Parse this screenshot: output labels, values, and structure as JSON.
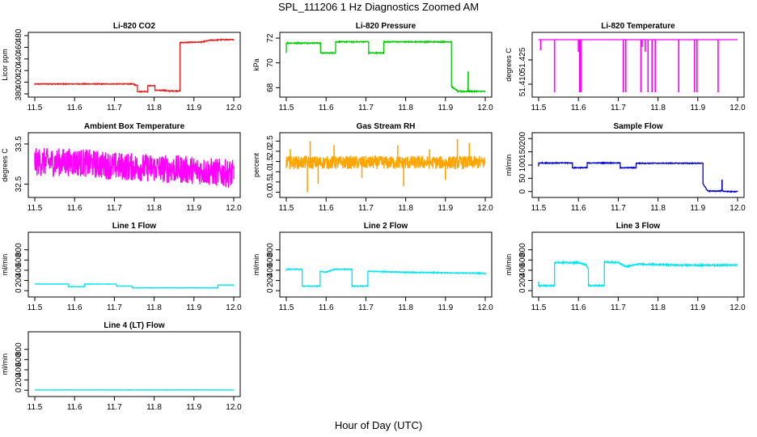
{
  "figure": {
    "title": "SPL_111206  1 Hz Diagnostics Zoomed AM",
    "xlabel": "Hour of Day (UTC)"
  },
  "chart_data": [
    {
      "type": "line",
      "title": "Li-820 CO2",
      "ylabel": "Licor ppm",
      "color": "#e41a1c",
      "xlim": [
        11.5,
        12.0
      ],
      "ylim": [
        380,
        480
      ],
      "xticks": [
        "11.5",
        "11.6",
        "11.7",
        "11.8",
        "11.9",
        "12.0"
      ],
      "yticks": [
        380,
        400,
        420,
        440,
        460,
        480
      ],
      "noise": 0.7,
      "x": [
        11.5,
        11.75,
        11.75,
        11.758,
        11.758,
        11.784,
        11.784,
        11.802,
        11.802,
        11.829,
        11.829,
        11.865,
        11.865,
        11.92,
        11.94,
        11.97,
        12.0
      ],
      "y": [
        397,
        397,
        395,
        395,
        384,
        384,
        394,
        394,
        386,
        386,
        385,
        385,
        468,
        469,
        472,
        473,
        473
      ]
    },
    {
      "type": "line",
      "title": "Li-820 Pressure",
      "ylabel": "kPa",
      "color": "#00cc00",
      "xlim": [
        11.5,
        12.0
      ],
      "ylim": [
        67.5,
        72.2
      ],
      "xticks": [
        "11.5",
        "11.6",
        "11.7",
        "11.8",
        "11.9",
        "12.0"
      ],
      "yticks": [
        68,
        70,
        72
      ],
      "noise": 0.04,
      "x": [
        11.5,
        11.5,
        11.504,
        11.504,
        11.586,
        11.586,
        11.624,
        11.624,
        11.707,
        11.707,
        11.745,
        11.745,
        11.915,
        11.915,
        11.932,
        11.932,
        11.98,
        12.0
      ],
      "y": [
        70.8,
        71.6,
        71.6,
        71.6,
        71.6,
        70.8,
        70.8,
        71.7,
        71.7,
        70.8,
        70.8,
        71.7,
        71.7,
        68.1,
        67.7,
        67.7,
        67.7,
        67.7
      ],
      "spikes": [
        {
          "x": 11.957,
          "y": 69.3
        }
      ]
    },
    {
      "type": "line",
      "title": "Li-820 Temperature",
      "ylabel": "degrees C",
      "color": "#ff00ff",
      "xlim": [
        11.5,
        12.0
      ],
      "ylim": [
        51.404,
        51.44
      ],
      "xticks": [
        "11.5",
        "11.6",
        "11.7",
        "11.8",
        "11.9",
        "12.0"
      ],
      "yticks": [
        51.41,
        51.425
      ],
      "ytick_labels": [
        "51.410",
        "51.425"
      ],
      "noise": 0,
      "x": [
        11.5,
        12.0
      ],
      "y": [
        51.4375,
        51.4375
      ],
      "spikes": [
        {
          "x": 11.505,
          "y": 51.431
        },
        {
          "x": 11.54,
          "y": 51.405
        },
        {
          "x": 11.6,
          "y": 51.43
        },
        {
          "x": 11.603,
          "y": 51.405
        },
        {
          "x": 11.606,
          "y": 51.405
        },
        {
          "x": 11.713,
          "y": 51.405
        },
        {
          "x": 11.719,
          "y": 51.405
        },
        {
          "x": 11.757,
          "y": 51.405
        },
        {
          "x": 11.76,
          "y": 51.433
        },
        {
          "x": 11.768,
          "y": 51.43
        },
        {
          "x": 11.775,
          "y": 51.405
        },
        {
          "x": 11.785,
          "y": 51.405
        },
        {
          "x": 11.793,
          "y": 51.405
        },
        {
          "x": 11.852,
          "y": 51.405
        },
        {
          "x": 11.892,
          "y": 51.405
        },
        {
          "x": 11.898,
          "y": 51.405
        },
        {
          "x": 11.951,
          "y": 51.405
        }
      ]
    },
    {
      "type": "line",
      "title": "Ambient Box Temperature",
      "ylabel": "degrees C",
      "color": "#ff00ff",
      "xlim": [
        11.5,
        12.0
      ],
      "ylim": [
        32.25,
        33.7
      ],
      "xticks": [
        "11.5",
        "11.6",
        "11.7",
        "11.8",
        "11.9",
        "12.0"
      ],
      "yticks": [
        32.5,
        33.5
      ],
      "ytick_labels": [
        "32.5",
        "33.5"
      ],
      "noise": 0.22,
      "x": [
        11.5,
        11.6,
        11.7,
        11.8,
        11.9,
        12.0
      ],
      "y": [
        33.05,
        33.05,
        32.95,
        32.9,
        32.85,
        32.75
      ]
    },
    {
      "type": "line",
      "title": "Gas Stream RH",
      "ylabel": "percent",
      "color": "#ffa500",
      "xlim": [
        11.5,
        12.0
      ],
      "ylim": [
        -0.1,
        2.75
      ],
      "xticks": [
        "11.5",
        "11.6",
        "11.7",
        "11.8",
        "11.9",
        "12.0"
      ],
      "yticks": [
        0.0,
        0.5,
        1.0,
        1.5,
        2.0,
        2.5
      ],
      "ytick_labels": [
        "0.0",
        "0.5",
        "1.0",
        "1.5",
        "2.0",
        "2.5"
      ],
      "noise": 0.2,
      "x": [
        11.5,
        12.0
      ],
      "y": [
        1.45,
        1.45
      ],
      "spikes": [
        {
          "x": 11.553,
          "y": 0.0
        },
        {
          "x": 11.51,
          "y": 2.1
        },
        {
          "x": 11.56,
          "y": 2.5
        },
        {
          "x": 11.58,
          "y": 0.4
        },
        {
          "x": 11.62,
          "y": 2.3
        },
        {
          "x": 11.69,
          "y": 0.7
        },
        {
          "x": 11.78,
          "y": 2.3
        },
        {
          "x": 11.795,
          "y": 0.3
        },
        {
          "x": 11.86,
          "y": 2.1
        },
        {
          "x": 11.93,
          "y": 2.6
        },
        {
          "x": 11.96,
          "y": 2.4
        },
        {
          "x": 11.9,
          "y": 0.6
        }
      ]
    },
    {
      "type": "line",
      "title": "Sample Flow",
      "ylabel": "ml/min",
      "color": "#0000cc",
      "xlim": [
        11.5,
        12.0
      ],
      "ylim": [
        -10,
        210
      ],
      "xticks": [
        "11.5",
        "11.6",
        "11.7",
        "11.8",
        "11.9",
        "12.0"
      ],
      "yticks": [
        0,
        50,
        100,
        150,
        200
      ],
      "noise": 1.5,
      "x": [
        11.5,
        11.5,
        11.585,
        11.585,
        11.622,
        11.622,
        11.705,
        11.705,
        11.745,
        11.745,
        11.913,
        11.913,
        11.925,
        11.96,
        11.98,
        12.0
      ],
      "y": [
        95,
        108,
        108,
        90,
        90,
        108,
        108,
        90,
        90,
        107,
        107,
        30,
        2,
        2,
        0,
        0
      ],
      "spikes": [
        {
          "x": 11.961,
          "y": 45
        }
      ]
    },
    {
      "type": "line",
      "title": "Line 1 Flow",
      "ylabel": "ml/min",
      "color": "#00e5ee",
      "xlim": [
        11.5,
        12.0
      ],
      "ylim": [
        -60,
        1080
      ],
      "xticks": [
        "11.5",
        "11.6",
        "11.7",
        "11.8",
        "11.9",
        "12.0"
      ],
      "yticks": [
        0,
        200,
        400,
        600,
        800
      ],
      "noise": 3,
      "x": [
        11.5,
        11.585,
        11.585,
        11.625,
        11.625,
        11.705,
        11.705,
        11.745,
        11.745,
        11.96,
        11.96,
        12.0
      ],
      "y": [
        130,
        130,
        80,
        80,
        130,
        130,
        90,
        90,
        55,
        55,
        110,
        110
      ]
    },
    {
      "type": "line",
      "title": "Line 2 Flow",
      "ylabel": "ml/min",
      "color": "#00e5ee",
      "xlim": [
        11.5,
        12.0
      ],
      "ylim": [
        -60,
        1080
      ],
      "xticks": [
        "11.5",
        "11.6",
        "11.7",
        "11.8",
        "11.9",
        "12.0"
      ],
      "yticks": [
        0,
        200,
        400,
        600,
        800
      ],
      "noise": 8,
      "x": [
        11.5,
        11.54,
        11.54,
        11.585,
        11.585,
        11.6,
        11.62,
        11.665,
        11.665,
        11.705,
        11.705,
        11.75,
        11.8,
        11.9,
        12.0
      ],
      "y": [
        420,
        420,
        90,
        90,
        380,
        360,
        420,
        420,
        90,
        90,
        380,
        370,
        360,
        350,
        340
      ]
    },
    {
      "type": "line",
      "title": "Line 3 Flow",
      "ylabel": "ml/min",
      "color": "#00e5ee",
      "xlim": [
        11.5,
        12.0
      ],
      "ylim": [
        -60,
        1080
      ],
      "xticks": [
        "11.5",
        "11.6",
        "11.7",
        "11.8",
        "11.9",
        "12.0"
      ],
      "yticks": [
        0,
        200,
        400,
        600,
        800
      ],
      "noise": 12,
      "x": [
        11.5,
        11.5,
        11.503,
        11.503,
        11.54,
        11.54,
        11.6,
        11.62,
        11.625,
        11.625,
        11.665,
        11.665,
        11.7,
        11.72,
        11.75,
        11.85,
        12.0
      ],
      "y": [
        180,
        100,
        100,
        100,
        100,
        550,
        550,
        500,
        420,
        100,
        100,
        560,
        550,
        470,
        520,
        500,
        500
      ]
    },
    {
      "type": "line",
      "title": "Line 4 (LT) Flow",
      "ylabel": "ml/min",
      "color": "#00e5ee",
      "xlim": [
        11.5,
        12.0
      ],
      "ylim": [
        -60,
        1080
      ],
      "xticks": [
        "11.5",
        "11.6",
        "11.7",
        "11.8",
        "11.9",
        "12.0"
      ],
      "yticks": [
        0,
        200,
        400,
        600,
        800
      ],
      "noise": 2,
      "x": [
        11.5,
        12.0
      ],
      "y": [
        5,
        5
      ]
    }
  ]
}
